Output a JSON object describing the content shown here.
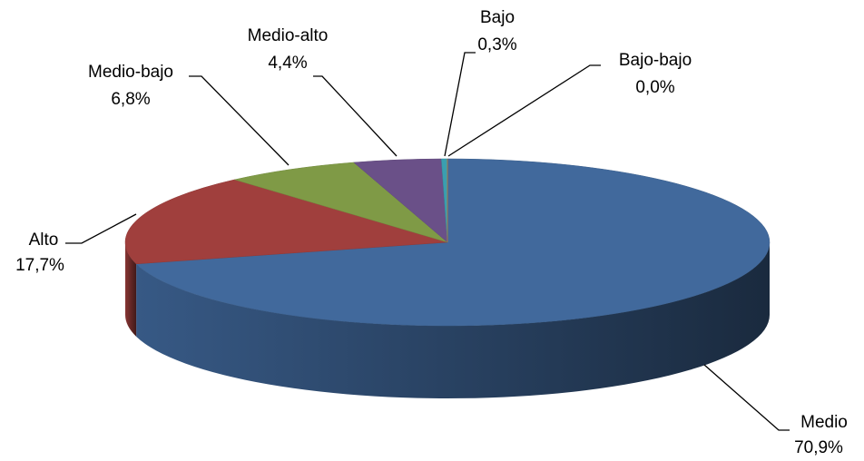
{
  "chart_data": {
    "type": "pie3d",
    "categories": [
      "Medio",
      "Alto",
      "Medio-bajo",
      "Medio-alto",
      "Bajo",
      "Bajo-bajo"
    ],
    "values": [
      70.9,
      17.7,
      6.8,
      4.4,
      0.3,
      0.0
    ],
    "value_labels": [
      "70,9%",
      "17,7%",
      "6,8%",
      "4,4%",
      "0,3%",
      "0,0%"
    ],
    "colors": [
      "#41699c",
      "#a03f3d",
      "#7f9a46",
      "#6a5088",
      "#3a9fb0",
      "#e0822f"
    ]
  }
}
